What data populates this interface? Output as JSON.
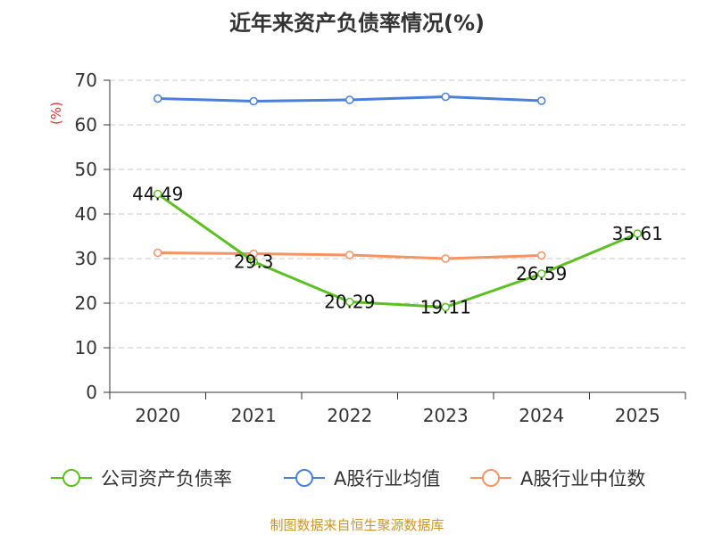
{
  "chart_data": {
    "type": "line",
    "title": "近年来资产负债率情况(%)",
    "ylabel": "(%)",
    "xlabel": "",
    "categories": [
      "2020",
      "2021",
      "2022",
      "2023",
      "2024",
      "2025"
    ],
    "ylim": [
      0,
      70
    ],
    "yticks": [
      0,
      10,
      20,
      30,
      40,
      50,
      60,
      70
    ],
    "grid": true,
    "legend_position": "bottom",
    "series": [
      {
        "name": "公司资产负债率",
        "color": "#5cc023",
        "values": [
          44.49,
          29.3,
          20.29,
          19.11,
          26.59,
          35.61
        ],
        "labels": [
          "44.49",
          "29.3",
          "20.29",
          "19.11",
          "26.59",
          "35.61"
        ]
      },
      {
        "name": "A股行业均值",
        "color": "#4a7fdc",
        "values": [
          65.9,
          65.3,
          65.6,
          66.3,
          65.4,
          null
        ],
        "labels": null
      },
      {
        "name": "A股行业中位数",
        "color": "#f59363",
        "values": [
          31.3,
          31.1,
          30.8,
          30.0,
          30.7,
          null
        ],
        "labels": null
      }
    ]
  },
  "source": "制图数据来自恒生聚源数据库"
}
